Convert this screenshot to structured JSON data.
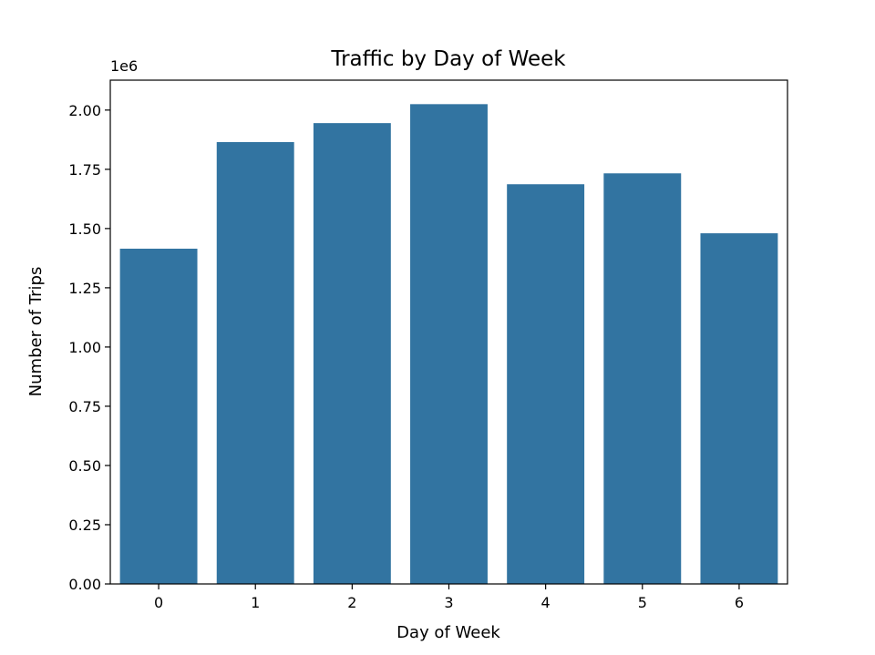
{
  "chart_data": {
    "type": "bar",
    "title": "Traffic by Day of Week",
    "xlabel": "Day of Week",
    "ylabel": "Number of Trips",
    "y_offset_label": "1e6",
    "categories": [
      "0",
      "1",
      "2",
      "3",
      "4",
      "5",
      "6"
    ],
    "values": [
      1415000,
      1865000,
      1945000,
      2025000,
      1687000,
      1733000,
      1480000
    ],
    "ylim": [
      0,
      2126250
    ],
    "y_ticks": [
      0,
      250000,
      500000,
      750000,
      1000000,
      1250000,
      1500000,
      1750000,
      2000000
    ],
    "y_tick_labels": [
      "0.00",
      "0.25",
      "0.50",
      "0.75",
      "1.00",
      "1.25",
      "1.50",
      "1.75",
      "2.00"
    ],
    "bar_color": "#3274a1",
    "grid": false,
    "legend": "none"
  }
}
